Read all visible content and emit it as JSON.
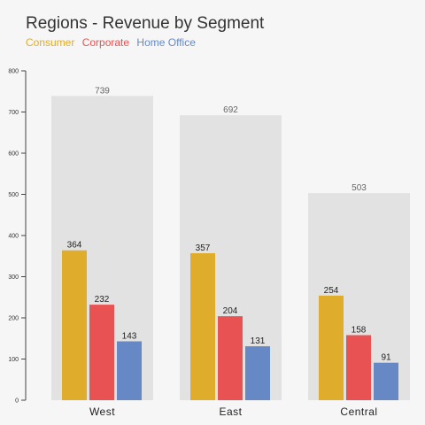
{
  "chart_data": {
    "type": "bar",
    "title": "Regions - Revenue by Segment",
    "categories": [
      "West",
      "East",
      "Central"
    ],
    "totals": [
      739,
      692,
      503
    ],
    "series": [
      {
        "name": "Consumer",
        "values": [
          364,
          357,
          254
        ],
        "color": "#e0ac2b"
      },
      {
        "name": "Corporate",
        "values": [
          232,
          204,
          158
        ],
        "color": "#e85252"
      },
      {
        "name": "Home Office",
        "values": [
          143,
          131,
          91
        ],
        "color": "#6689c6"
      }
    ],
    "ylim": [
      0,
      800
    ],
    "yticks": [
      0,
      100,
      200,
      300,
      400,
      500,
      600,
      700,
      800
    ],
    "total_bar_color": "#e2e2e2",
    "grid": false,
    "legend_position": "top-left"
  }
}
